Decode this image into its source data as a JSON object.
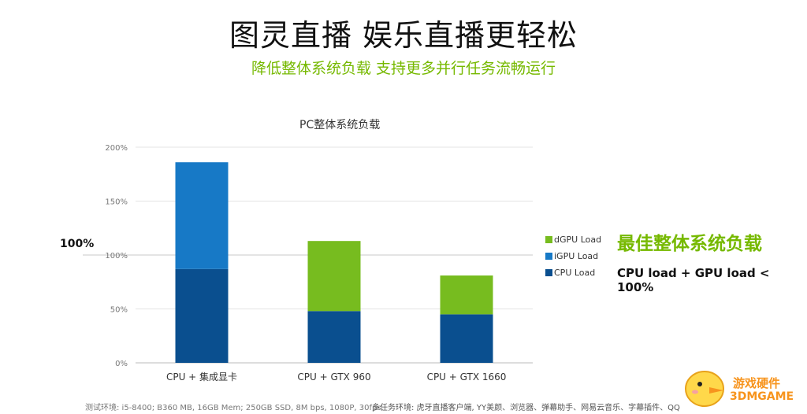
{
  "header": {
    "title": "图灵直播 娱乐直播更轻松",
    "subtitle": "降低整体系统负载 支持更多并行任务流畅运行"
  },
  "chart_data": {
    "type": "bar",
    "stacked": true,
    "title": "PC整体系统负载",
    "categories": [
      "CPU + 集成显卡",
      "CPU + GTX 960",
      "CPU + GTX 1660"
    ],
    "series": [
      {
        "name": "CPU Load",
        "color": "#0a4f8f",
        "values": [
          87,
          48,
          45
        ]
      },
      {
        "name": "iGPU Load",
        "color": "#1779c6",
        "values": [
          99,
          0,
          0
        ]
      },
      {
        "name": "dGPU Load",
        "color": "#77bc1f",
        "values": [
          0,
          65,
          36
        ]
      }
    ],
    "yticks": [
      "0%",
      "50%",
      "100%",
      "150%",
      "200%"
    ],
    "ylim": [
      0,
      200
    ],
    "reference_line": {
      "value": 100,
      "label": "100%"
    },
    "legend_position": "right",
    "grid": true
  },
  "callout": {
    "title": "最佳整体系统负载",
    "body": "CPU load + GPU load < 100%"
  },
  "footer": {
    "test_env": "测试环境: i5-8400; B360 MB, 16GB Mem; 250GB SSD, 8M bps, 1080P, 30fps.",
    "multitask_env": "多任务环境: 虎牙直播客户端, YY美颜、浏览器、弹幕助手、网易云音乐、字幕插件、QQ"
  },
  "watermark": {
    "line1": "游戏硬件",
    "line2": "3DMGAME"
  }
}
